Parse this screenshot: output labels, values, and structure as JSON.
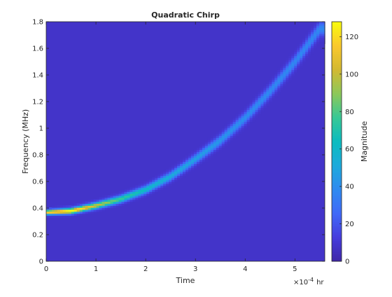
{
  "chart_data": {
    "type": "heatmap",
    "title": "Quadratic Chirp",
    "xlabel": "Time",
    "ylabel": "Frequency (MHz)",
    "x_exponent_label": "×10",
    "x_exponent_power": "-4",
    "x_unit": "hr",
    "xlim": [
      0,
      5.6
    ],
    "ylim": [
      0,
      1.8
    ],
    "x_ticks": [
      "0",
      "1",
      "2",
      "3",
      "4",
      "5"
    ],
    "y_ticks": [
      "0",
      "0.2",
      "0.4",
      "0.6",
      "0.8",
      "1",
      "1.2",
      "1.4",
      "1.6",
      "1.8"
    ],
    "colorbar": {
      "label": "Magnitude",
      "range": [
        0,
        128
      ],
      "ticks": [
        "0",
        "20",
        "40",
        "60",
        "80",
        "100",
        "120"
      ],
      "colormap": "parula"
    },
    "ridge": {
      "x": [
        0.0,
        0.5,
        1.0,
        1.5,
        2.0,
        2.5,
        3.0,
        3.5,
        4.0,
        4.5,
        5.0,
        5.5
      ],
      "y": [
        0.37,
        0.38,
        0.42,
        0.47,
        0.54,
        0.64,
        0.77,
        0.91,
        1.08,
        1.28,
        1.5,
        1.75
      ],
      "peak_magnitude": [
        110,
        125,
        95,
        70,
        55,
        45,
        40,
        36,
        33,
        31,
        30,
        30
      ]
    },
    "background_magnitude": 8
  }
}
